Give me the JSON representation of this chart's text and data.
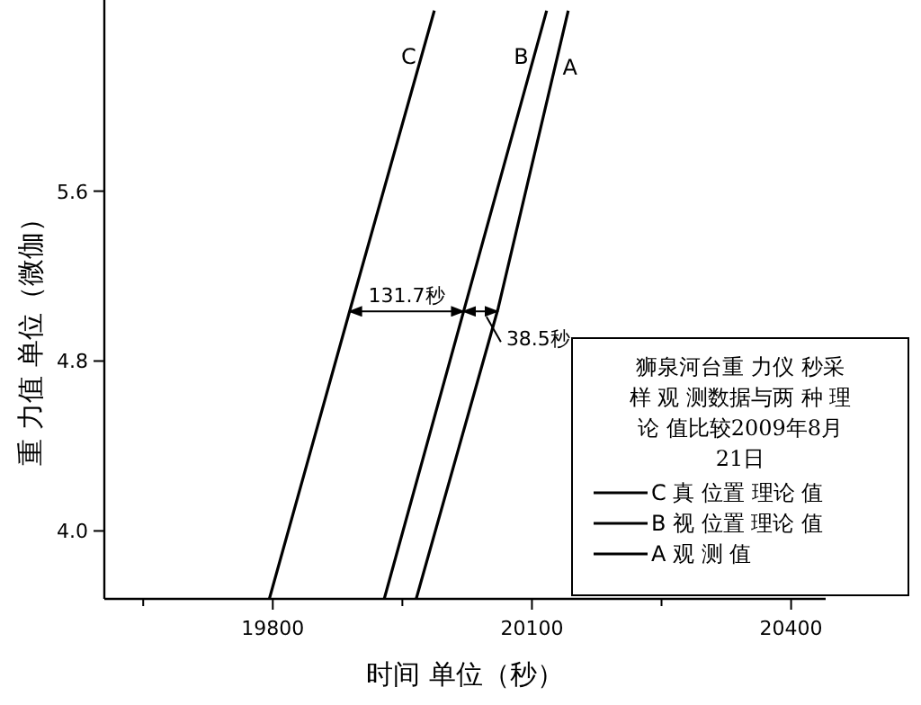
{
  "chart_data": {
    "type": "line",
    "xlabel": "时间 单位（秒）",
    "ylabel": "重 力值 单位（微伽）",
    "legend_title": "狮泉河台重 力仪 秒采样 观 测数据与两 种 理论 值比较2009年8月 21日",
    "legend": "bottom right",
    "grid": false,
    "line_style": "solid",
    "xlim": [
      19605,
      20440
    ],
    "ylim": [
      3.68,
      6.5
    ],
    "xticks": [
      {
        "value": 19650,
        "label": null
      },
      19800,
      {
        "value": 19950,
        "label": null
      },
      20100,
      {
        "value": 20250,
        "label": null
      },
      20400
    ],
    "yticks": [
      {
        "value": 4.0,
        "label": "4.0"
      },
      {
        "value": 4.8,
        "label": "4.8"
      },
      {
        "value": 5.6,
        "label": "5.6"
      }
    ],
    "series": [
      {
        "name": "C 真 位置 理论 值",
        "color": "#000000",
        "x": [
          19796,
          19890,
          19987
        ],
        "values": [
          3.68,
          5.05,
          6.45
        ]
      },
      {
        "name": "B 视 位置 理论 值",
        "color": "#000000",
        "x": [
          19929,
          20022,
          20117
        ],
        "values": [
          3.68,
          5.05,
          6.45
        ]
      },
      {
        "name": "A 观 测 值",
        "color": "#000000",
        "x": [
          19966,
          20061,
          20142
        ],
        "values": [
          3.68,
          5.05,
          6.45
        ]
      }
    ],
    "annotations": [
      "131.7秒",
      "38.5秒",
      "C",
      "B",
      "A"
    ]
  }
}
